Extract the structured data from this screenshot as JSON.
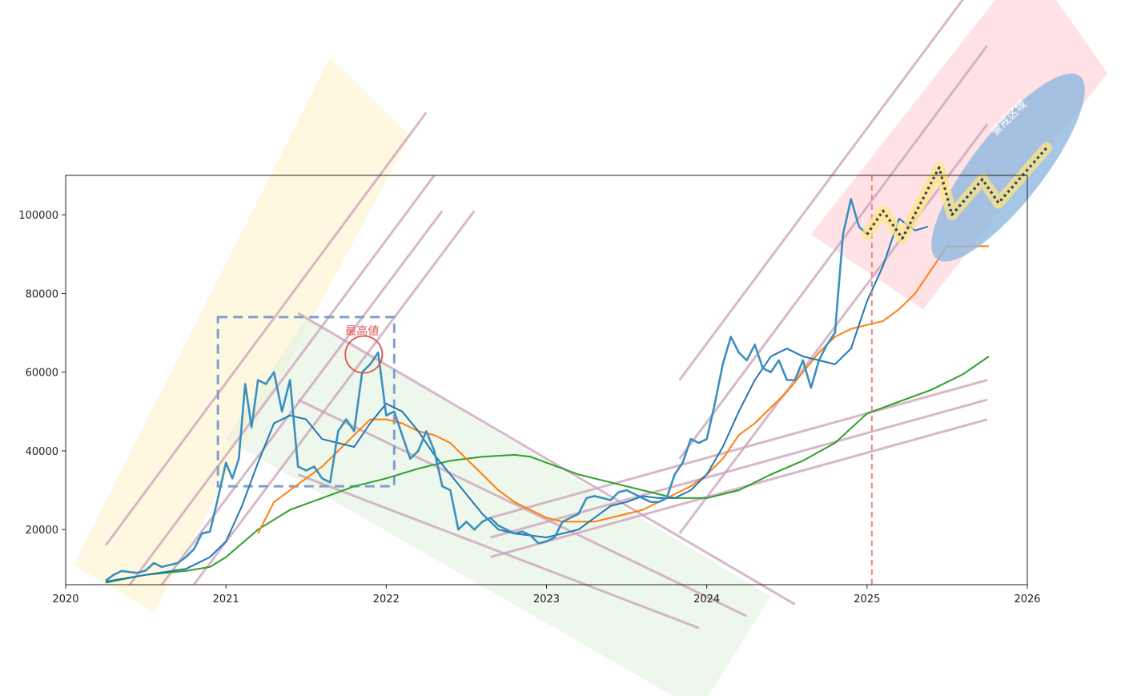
{
  "chart_data": {
    "type": "line",
    "title": "",
    "xlabel": "",
    "ylabel": "",
    "xlim": [
      2020.0,
      2026.0
    ],
    "ylim": [
      6000,
      110000
    ],
    "x_ticks": [
      2020,
      2021,
      2022,
      2023,
      2024,
      2025,
      2026
    ],
    "x_tick_labels": [
      "2020",
      "2021",
      "2022",
      "2023",
      "2024",
      "2025",
      "2026"
    ],
    "y_ticks": [
      20000,
      40000,
      60000,
      80000,
      100000
    ],
    "y_tick_labels": [
      "20000",
      "40000",
      "60000",
      "80000",
      "100000"
    ],
    "grid": false,
    "legend": "none",
    "series": [
      {
        "role": "price",
        "color": "#3a8fbf",
        "x": [
          2020.25,
          2020.3,
          2020.35,
          2020.4,
          2020.45,
          2020.5,
          2020.55,
          2020.6,
          2020.65,
          2020.7,
          2020.75,
          2020.8,
          2020.85,
          2020.9,
          2020.95,
          2021.0,
          2021.04,
          2021.08,
          2021.12,
          2021.16,
          2021.2,
          2021.25,
          2021.3,
          2021.35,
          2021.4,
          2021.45,
          2021.5,
          2021.55,
          2021.6,
          2021.65,
          2021.7,
          2021.75,
          2021.8,
          2021.85,
          2021.9,
          2021.95,
          2022.0,
          2022.05,
          2022.1,
          2022.15,
          2022.2,
          2022.25,
          2022.3,
          2022.35,
          2022.4,
          2022.45,
          2022.5,
          2022.55,
          2022.6,
          2022.65,
          2022.7,
          2022.75,
          2022.8,
          2022.85,
          2022.9,
          2022.95,
          2023.0,
          2023.05,
          2023.1,
          2023.15,
          2023.2,
          2023.25,
          2023.3,
          2023.35,
          2023.4,
          2023.45,
          2023.5,
          2023.55,
          2023.6,
          2023.65,
          2023.7,
          2023.75,
          2023.8,
          2023.85,
          2023.9,
          2023.95,
          2024.0,
          2024.05,
          2024.1,
          2024.15,
          2024.2,
          2024.25,
          2024.3,
          2024.35,
          2024.4,
          2024.45,
          2024.5,
          2024.55,
          2024.6,
          2024.65,
          2024.7,
          2024.75,
          2024.8,
          2024.85,
          2024.9,
          2024.95,
          2025.0
        ],
        "y": [
          7000,
          8500,
          9500,
          9200,
          9000,
          9600,
          11500,
          10500,
          11000,
          11500,
          13000,
          15000,
          19000,
          19500,
          28000,
          37000,
          33000,
          38000,
          57000,
          46000,
          58000,
          57000,
          60000,
          50000,
          58000,
          36000,
          35000,
          36000,
          33000,
          32000,
          45000,
          48000,
          45000,
          60000,
          62000,
          65000,
          49000,
          50000,
          44000,
          38000,
          40000,
          45000,
          40000,
          31000,
          30000,
          20000,
          22000,
          20000,
          22000,
          23000,
          21000,
          20000,
          19000,
          19500,
          18500,
          16500,
          17000,
          18000,
          22000,
          23000,
          24000,
          28000,
          28500,
          28000,
          27500,
          29500,
          30000,
          29000,
          28000,
          27000,
          27000,
          28000,
          34000,
          37000,
          43000,
          42000,
          43000,
          52000,
          62000,
          69000,
          65000,
          63000,
          67000,
          61000,
          60000,
          63000,
          58000,
          58000,
          63000,
          56000,
          63000,
          67000,
          70000,
          95000,
          104000,
          97000,
          95000
        ]
      },
      {
        "role": "short-ma",
        "color": "#1f77b4",
        "x": [
          2020.25,
          2020.5,
          2020.75,
          2020.9,
          2021.0,
          2021.1,
          2021.2,
          2021.3,
          2021.4,
          2021.5,
          2021.6,
          2021.7,
          2021.8,
          2021.9,
          2022.0,
          2022.1,
          2022.2,
          2022.3,
          2022.4,
          2022.5,
          2022.6,
          2022.7,
          2022.8,
          2022.9,
          2023.0,
          2023.1,
          2023.2,
          2023.3,
          2023.4,
          2023.5,
          2023.6,
          2023.7,
          2023.8,
          2023.9,
          2024.0,
          2024.1,
          2024.2,
          2024.3,
          2024.4,
          2024.5,
          2024.6,
          2024.7,
          2024.8,
          2024.9,
          2025.0,
          2025.1,
          2025.2,
          2025.3,
          2025.38
        ],
        "y": [
          6800,
          8500,
          10000,
          13000,
          17000,
          26000,
          37000,
          47000,
          49000,
          48000,
          43000,
          42000,
          41000,
          47000,
          52000,
          50000,
          45000,
          39000,
          34000,
          29000,
          24000,
          20000,
          19000,
          18500,
          18000,
          19000,
          20000,
          23000,
          26000,
          27000,
          28500,
          28000,
          28000,
          30000,
          34000,
          41000,
          50000,
          58000,
          64000,
          66000,
          64000,
          63000,
          62000,
          66000,
          78000,
          87000,
          99000,
          96000,
          97000
        ]
      },
      {
        "role": "mid-ma",
        "color": "#ff7f0e",
        "x": [
          2021.2,
          2021.3,
          2021.4,
          2021.5,
          2021.6,
          2021.7,
          2021.8,
          2021.9,
          2022.0,
          2022.1,
          2022.2,
          2022.3,
          2022.4,
          2022.5,
          2022.6,
          2022.7,
          2022.8,
          2022.9,
          2023.0,
          2023.1,
          2023.2,
          2023.3,
          2023.4,
          2023.5,
          2023.6,
          2023.7,
          2023.8,
          2023.9,
          2024.0,
          2024.1,
          2024.2,
          2024.3,
          2024.4,
          2024.5,
          2024.6,
          2024.7,
          2024.8,
          2024.9,
          2025.0,
          2025.1,
          2025.2,
          2025.3,
          2025.4,
          2025.5,
          2025.6,
          2025.7,
          2025.76
        ],
        "y": [
          19000,
          27000,
          30000,
          33000,
          36000,
          40000,
          44000,
          48000,
          48000,
          47000,
          45000,
          44000,
          42000,
          38000,
          34000,
          30000,
          27000,
          25000,
          23000,
          22000,
          22000,
          22000,
          23000,
          24000,
          25000,
          27000,
          29000,
          31000,
          34000,
          38000,
          44000,
          47000,
          51000,
          55000,
          60000,
          65000,
          69000,
          71000,
          72000,
          73000,
          76000,
          80000,
          86000,
          92000,
          92000,
          92000,
          92000
        ]
      },
      {
        "role": "long-ma",
        "color": "#2ca02c",
        "x": [
          2020.25,
          2020.5,
          2020.75,
          2020.9,
          2021.0,
          2021.2,
          2021.4,
          2021.6,
          2021.8,
          2022.0,
          2022.2,
          2022.4,
          2022.6,
          2022.8,
          2022.9,
          2023.0,
          2023.2,
          2023.4,
          2023.6,
          2023.8,
          2024.0,
          2024.2,
          2024.4,
          2024.6,
          2024.8,
          2025.0,
          2025.2,
          2025.4,
          2025.6,
          2025.76
        ],
        "y": [
          6500,
          8500,
          9500,
          10500,
          13000,
          20000,
          25000,
          28000,
          31000,
          33000,
          35500,
          37500,
          38500,
          39000,
          38500,
          37000,
          34000,
          32000,
          30000,
          28000,
          28000,
          30000,
          34000,
          37500,
          42000,
          49500,
          52500,
          55500,
          59500,
          64000
        ]
      }
    ],
    "forecast": {
      "color": "#2f3f5f",
      "style": "dotted",
      "highlight_color": "#ffe680",
      "x": [
        2025.0,
        2025.1,
        2025.22,
        2025.45,
        2025.53,
        2025.72,
        2025.82,
        2026.12
      ],
      "y": [
        95000,
        101000,
        94000,
        112000,
        100000,
        109000,
        103000,
        117000
      ]
    },
    "reference_line": {
      "x": 2025.03,
      "color": "#f08080",
      "style": "dashed"
    },
    "trend_channels": [
      {
        "color": "#c9a0b8",
        "lines": [
          [
            [
              2020.25,
              16000
            ],
            [
              2022.25,
              126000
            ]
          ],
          [
            [
              2020.4,
              6000
            ],
            [
              2022.3,
              110000
            ]
          ],
          [
            [
              2020.6,
              6000
            ],
            [
              2022.35,
              101000
            ]
          ],
          [
            [
              2020.8,
              6000
            ],
            [
              2022.55,
              101000
            ]
          ]
        ]
      },
      {
        "color": "#c9a0b8",
        "lines": [
          [
            [
              2021.45,
              75000
            ],
            [
              2024.55,
              1000
            ]
          ],
          [
            [
              2021.45,
              53000
            ],
            [
              2024.25,
              -2000
            ]
          ],
          [
            [
              2021.45,
              34000
            ],
            [
              2023.95,
              -5000
            ]
          ]
        ]
      },
      {
        "color": "#c9a0b8",
        "lines": [
          [
            [
              2022.65,
              23000
            ],
            [
              2025.75,
              58000
            ]
          ],
          [
            [
              2022.65,
              18000
            ],
            [
              2025.75,
              53000
            ]
          ],
          [
            [
              2022.65,
              13000
            ],
            [
              2025.75,
              48000
            ]
          ]
        ]
      },
      {
        "color": "#c9a0b8",
        "lines": [
          [
            [
              2023.83,
              58000
            ],
            [
              2025.75,
              163000
            ]
          ],
          [
            [
              2023.83,
              38000
            ],
            [
              2025.75,
              143000
            ]
          ],
          [
            [
              2023.83,
              19000
            ],
            [
              2025.75,
              123000
            ]
          ]
        ]
      }
    ],
    "shaded_bands": [
      {
        "color": "#fff3cc",
        "corners": [
          [
            2020.05,
            11000
          ],
          [
            2021.65,
            140000
          ],
          [
            2022.15,
            120000
          ],
          [
            2020.55,
            -1000
          ]
        ]
      },
      {
        "color": "#e3f2de",
        "corners": [
          [
            2021.0,
            43000
          ],
          [
            2021.5,
            74000
          ],
          [
            2024.4,
            3000
          ],
          [
            2023.95,
            -26000
          ]
        ]
      },
      {
        "color": "#ffcfd6",
        "corners": [
          [
            2024.65,
            95000
          ],
          [
            2026.0,
            165000
          ],
          [
            2026.5,
            136000
          ],
          [
            2025.35,
            76000
          ]
        ]
      }
    ],
    "highlight_box": {
      "x": [
        2020.95,
        2022.05
      ],
      "y": [
        31000,
        74000
      ],
      "color": "#7f9fd0",
      "style": "dashed"
    },
    "annotations": [
      {
        "text": "最高値",
        "x": 2021.85,
        "y": 69500,
        "color": "#e05555",
        "circle_center": [
          2021.86,
          64500
        ],
        "circle_radius_y": 4700
      },
      {
        "text": "警戒区域",
        "x": 2025.9,
        "y": 124000,
        "color": "#ffffff",
        "rotation": -45,
        "ellipse_center": [
          2025.88,
          112000
        ],
        "ellipse_color": "#8fb8e0"
      }
    ]
  }
}
